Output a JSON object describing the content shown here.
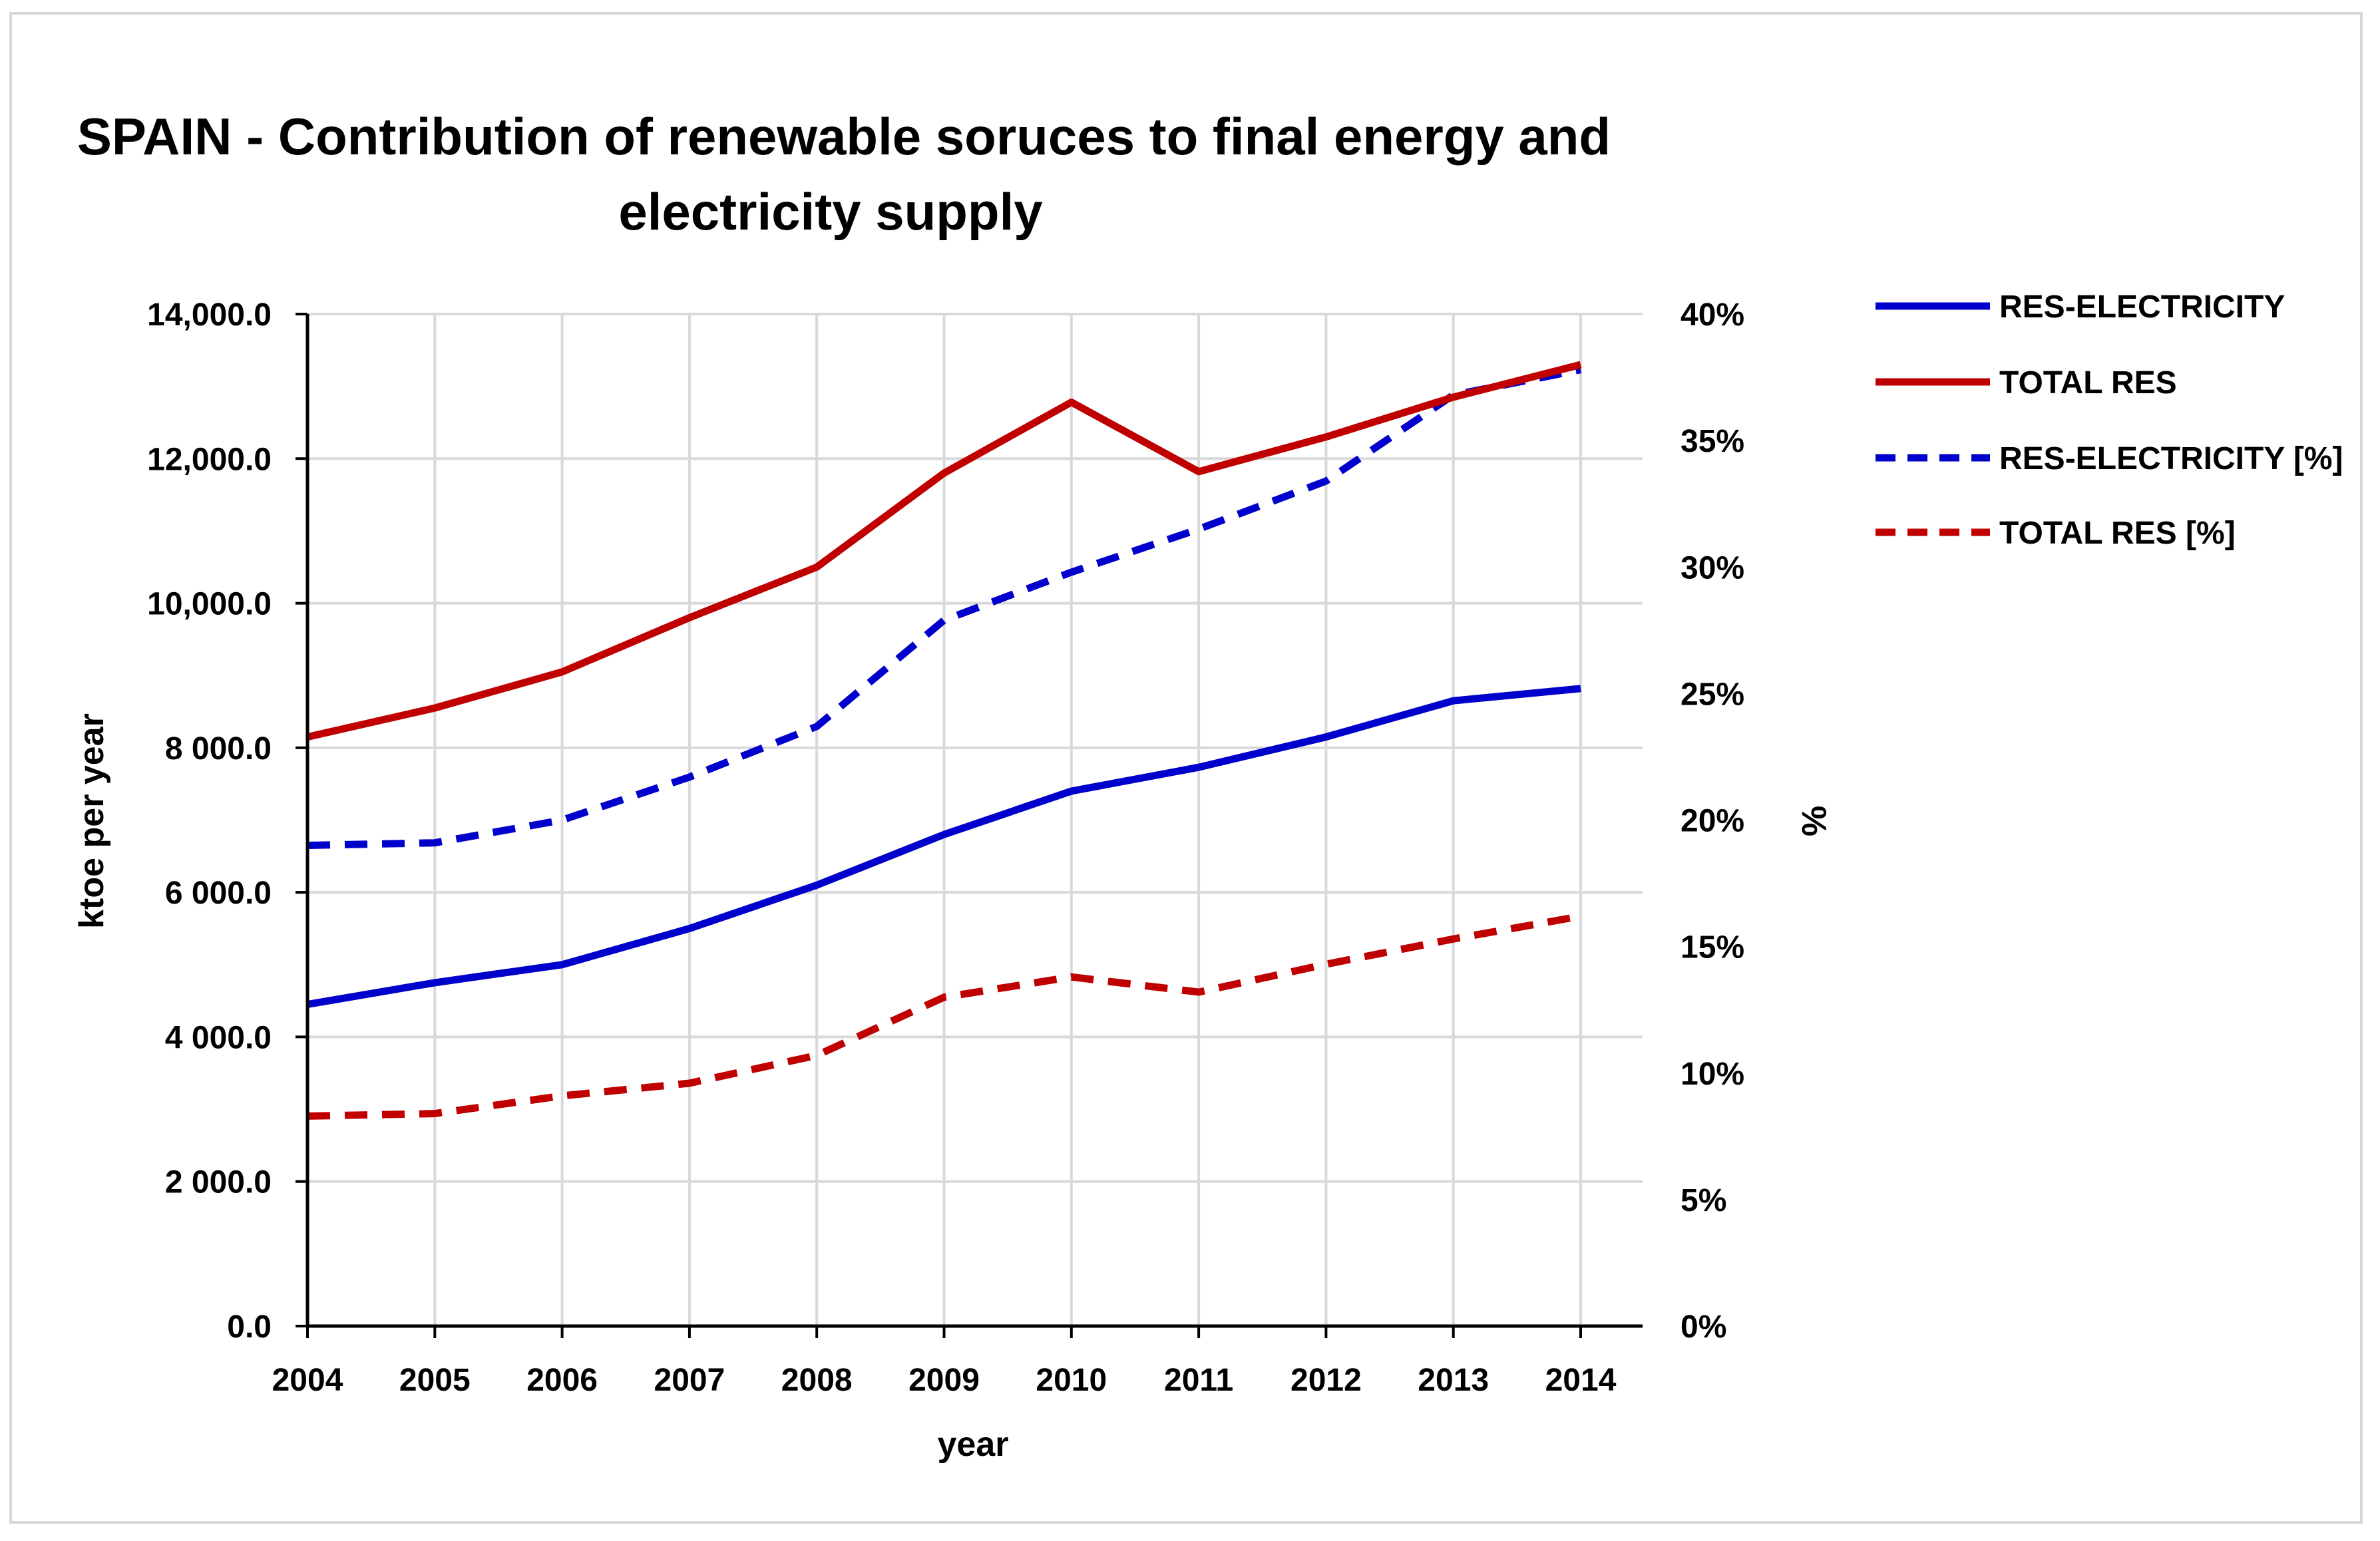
{
  "chart_data": {
    "type": "line",
    "title_lines": [
      "SPAIN - Contribution of renewable soruces to final energy and",
      "electricity supply"
    ],
    "xlabel": "year",
    "ylabel": "ktoe per year",
    "y2label": "%",
    "x": [
      "2004",
      "2005",
      "2006",
      "2007",
      "2008",
      "2009",
      "2010",
      "2011",
      "2012",
      "2013",
      "2014"
    ],
    "ylim": [
      0,
      14000
    ],
    "y2lim": [
      0,
      40
    ],
    "y_ticks": [
      {
        "value": 0,
        "label": "0.0"
      },
      {
        "value": 2000,
        "label": "2 000.0"
      },
      {
        "value": 4000,
        "label": "4 000.0"
      },
      {
        "value": 6000,
        "label": "6 000.0"
      },
      {
        "value": 8000,
        "label": "8 000.0"
      },
      {
        "value": 10000,
        "label": "10,000.0"
      },
      {
        "value": 12000,
        "label": "12,000.0"
      },
      {
        "value": 14000,
        "label": "14,000.0"
      }
    ],
    "y2_ticks": [
      {
        "value": 0,
        "label": "0%"
      },
      {
        "value": 5,
        "label": "5%"
      },
      {
        "value": 10,
        "label": "10%"
      },
      {
        "value": 15,
        "label": "15%"
      },
      {
        "value": 20,
        "label": "20%"
      },
      {
        "value": 25,
        "label": "25%"
      },
      {
        "value": 30,
        "label": "30%"
      },
      {
        "value": 35,
        "label": "35%"
      },
      {
        "value": 40,
        "label": "40%"
      }
    ],
    "series": [
      {
        "name": "RES-ELECTRICITY",
        "axis": "left",
        "color": "#0000cc",
        "dash": "solid",
        "values": [
          4450,
          4750,
          5000,
          5500,
          6100,
          6800,
          7400,
          7730,
          8150,
          8650,
          8820
        ]
      },
      {
        "name": "TOTAL RES",
        "axis": "left",
        "color": "#c00000",
        "dash": "solid",
        "values": [
          8150,
          8550,
          9050,
          9800,
          10500,
          11800,
          12780,
          11820,
          12300,
          12850,
          13300
        ]
      },
      {
        "name": "RES-ELECTRICITY [%]",
        "axis": "right",
        "color": "#0000cc",
        "dash": "dashed",
        "values": [
          19.0,
          19.1,
          20.0,
          21.7,
          23.7,
          27.9,
          29.8,
          31.5,
          33.4,
          36.8,
          37.8
        ]
      },
      {
        "name": "TOTAL RES [%]",
        "axis": "right",
        "color": "#c00000",
        "dash": "dashed",
        "values": [
          8.3,
          8.4,
          9.1,
          9.6,
          10.7,
          13.0,
          13.8,
          13.2,
          14.3,
          15.3,
          16.2
        ]
      }
    ],
    "legend_position": "right",
    "grid": true
  }
}
